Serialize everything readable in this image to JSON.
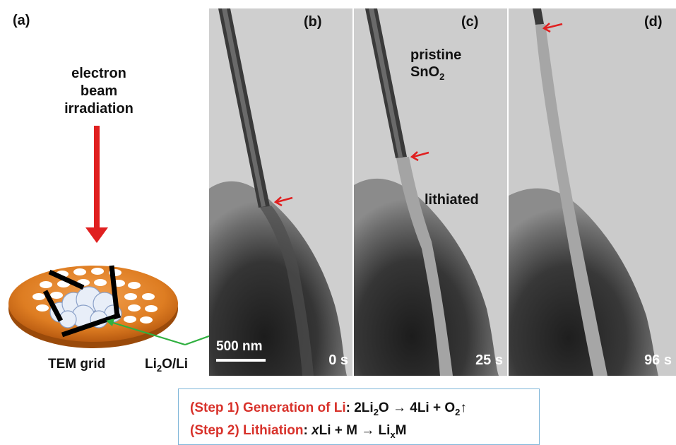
{
  "panel_a": {
    "label": "(a)",
    "beam_line1": "electron",
    "beam_line2": "beam",
    "beam_line3": "irradiation",
    "grid_label": "TEM grid",
    "li2o_prefix": "Li",
    "li2o_sub": "2",
    "li2o_suffix": "O/Li"
  },
  "panels": [
    {
      "label": "(b)",
      "time": "0 s"
    },
    {
      "label": "(c)",
      "time": "25 s"
    },
    {
      "label": "(d)",
      "time": "96 s"
    }
  ],
  "annotations": {
    "pristine_line1": "pristine",
    "pristine_line2_prefix": "SnO",
    "pristine_line2_sub": "2",
    "lithiated": "lithiated",
    "scale_bar": "500 nm"
  },
  "equations": {
    "step1_label": "(Step 1) Generation of Li",
    "step1_colon": ": ",
    "step1_eq_a": "2Li",
    "step1_eq_a_sub": "2",
    "step1_eq_b": "O → 4Li + O",
    "step1_eq_b_sub": "2",
    "step1_eq_c": "↑",
    "step2_label": "(Step 2) Lithiation",
    "step2_colon": ": ",
    "step2_x": "x",
    "step2_eq_a": "Li + M → Li",
    "step2_eq_sub": "x",
    "step2_eq_b": "M"
  },
  "colors": {
    "arrow_red": "#e02020",
    "arrow_green": "#30b040",
    "grid_orange": "#e68a2e",
    "box_border": "#7fb6d9"
  }
}
